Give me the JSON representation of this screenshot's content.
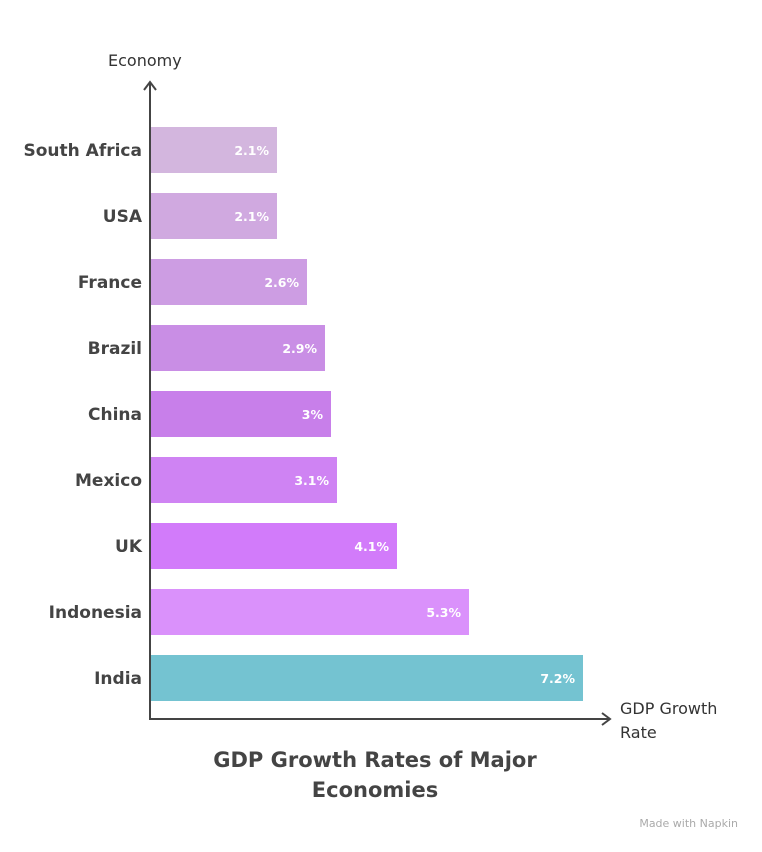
{
  "chart_data": {
    "type": "bar",
    "orientation": "horizontal",
    "title": "GDP Growth Rates of Major Economies",
    "xlabel": "GDP Growth Rate",
    "ylabel": "Economy",
    "categories": [
      "South Africa",
      "USA",
      "France",
      "Brazil",
      "China",
      "Mexico",
      "UK",
      "Indonesia",
      "India"
    ],
    "values": [
      2.1,
      2.1,
      2.6,
      2.9,
      3,
      3.1,
      4.1,
      5.3,
      7.2
    ],
    "value_labels": [
      "2.1%",
      "2.1%",
      "2.6%",
      "2.9%",
      "3%",
      "3.1%",
      "4.1%",
      "5.3%",
      "7.2%"
    ],
    "colors": [
      "#d3b6de",
      "#d0a9e0",
      "#cd9de3",
      "#c98ee5",
      "#c87fea",
      "#cf83f3",
      "#d27bfa",
      "#da91fb",
      "#74c3d1"
    ],
    "xlim": [
      0,
      7.5
    ],
    "grid": false,
    "legend": "none"
  },
  "watermark": "Made with Napkin"
}
